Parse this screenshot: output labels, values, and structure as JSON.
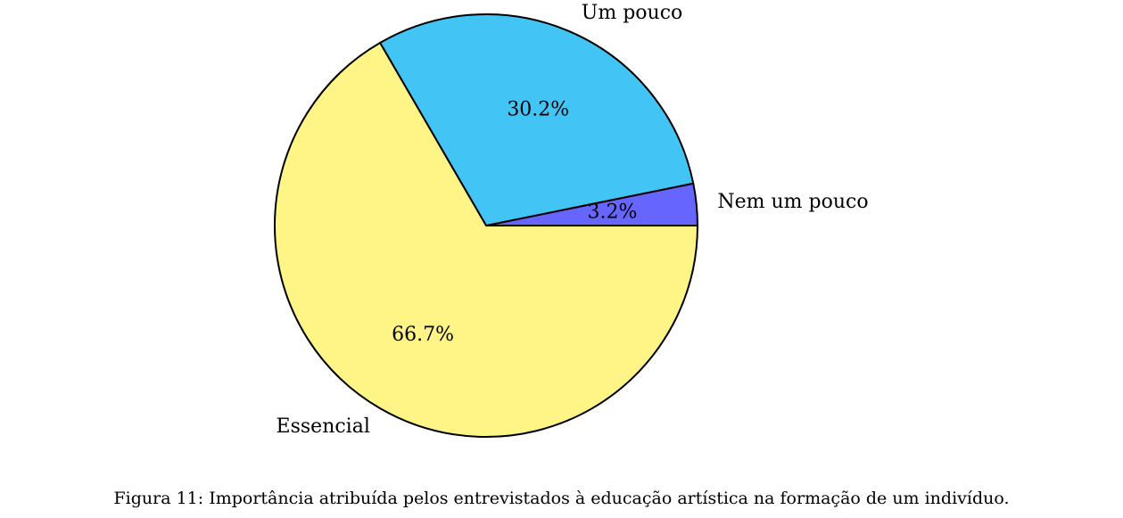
{
  "chart_data": {
    "type": "pie",
    "start_angle_deg": 0,
    "direction": "counterclockwise",
    "slices": [
      {
        "label": "Nem um pouco",
        "percent_label": "3.2%",
        "value": 3.2,
        "color": "#6666ff"
      },
      {
        "label": "Um pouco",
        "percent_label": "30.2%",
        "value": 30.2,
        "color": "#42c5f5"
      },
      {
        "label": "Essencial",
        "percent_label": "66.7%",
        "value": 66.7,
        "color": "#fff587"
      }
    ],
    "edge_color": "#000000"
  },
  "caption": "Figura 11: Importância atribuída pelos entrevistados à educação artística na formação de um indivíduo."
}
